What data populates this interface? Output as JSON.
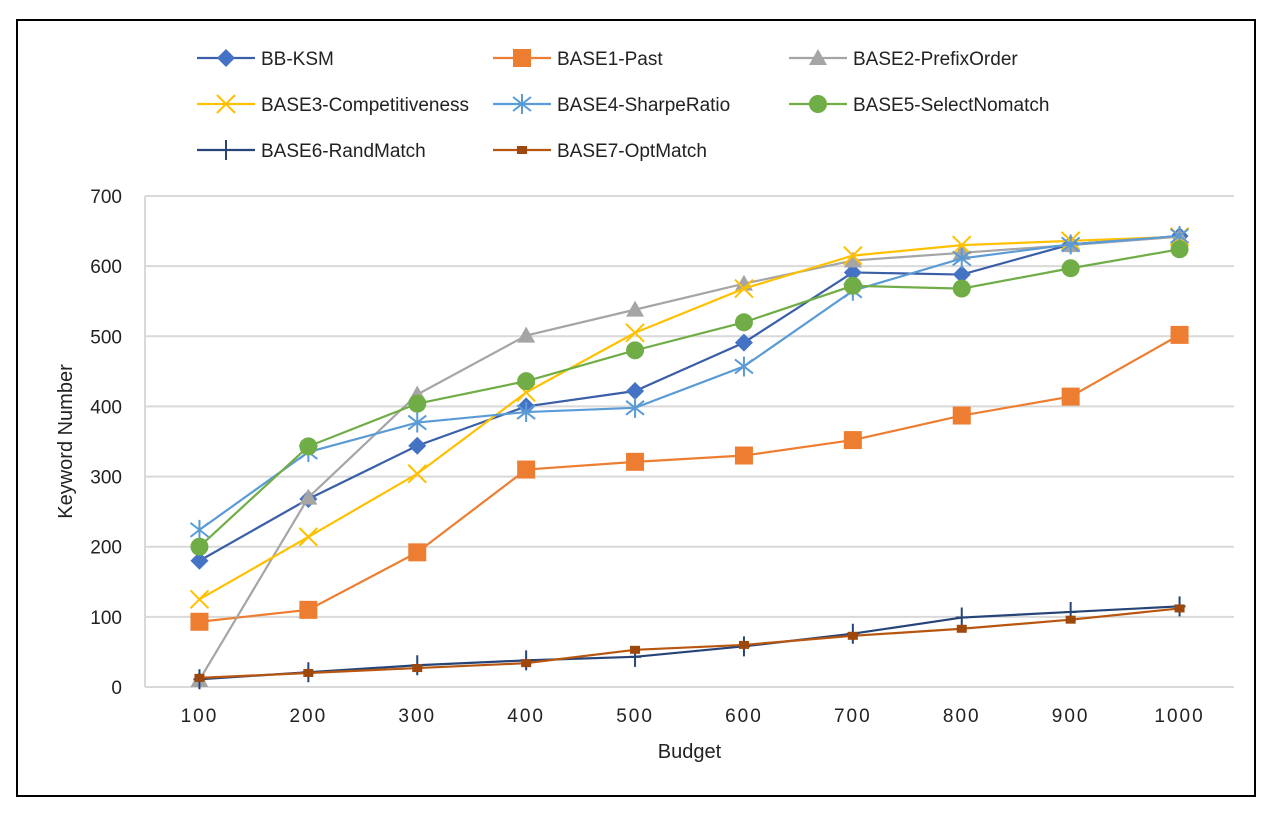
{
  "chart_data": {
    "type": "line",
    "title": "",
    "xlabel": "Budget",
    "ylabel": "Keyword Number",
    "categories": [
      "100",
      "200",
      "300",
      "400",
      "500",
      "600",
      "700",
      "800",
      "900",
      "1000"
    ],
    "ylim": [
      0,
      700
    ],
    "yticks": [
      "0",
      "100",
      "200",
      "300",
      "400",
      "500",
      "600",
      "700"
    ],
    "grid": true,
    "legend_position": "top",
    "series": [
      {
        "name": "BB-KSM",
        "color": "#4472C4",
        "line_color": "#3A5FA8",
        "marker": "diamond",
        "values": [
          180,
          268,
          344,
          400,
          422,
          491,
          591,
          588,
          631,
          643
        ]
      },
      {
        "name": "BASE1-Past",
        "color": "#ED7D31",
        "line_color": "#ED7D31",
        "marker": "square",
        "values": [
          93,
          110,
          192,
          310,
          321,
          330,
          352,
          387,
          414,
          502
        ]
      },
      {
        "name": "BASE2-PrefixOrder",
        "color": "#A5A5A5",
        "line_color": "#A5A5A5",
        "marker": "triangle",
        "values": [
          10,
          270,
          417,
          501,
          538,
          575,
          608,
          619,
          630,
          642
        ]
      },
      {
        "name": "BASE3-Competitiveness",
        "color": "#FFC000",
        "line_color": "#FFC000",
        "marker": "x",
        "values": [
          125,
          214,
          304,
          420,
          505,
          568,
          615,
          630,
          636,
          642
        ]
      },
      {
        "name": "BASE4-SharpeRatio",
        "color": "#5B9BD5",
        "line_color": "#5B9BD5",
        "marker": "star",
        "values": [
          224,
          335,
          377,
          392,
          398,
          457,
          565,
          611,
          631,
          643
        ]
      },
      {
        "name": "BASE5-SelectNomatch",
        "color": "#70AD47",
        "line_color": "#70AD47",
        "marker": "circle",
        "values": [
          200,
          343,
          404,
          436,
          480,
          520,
          572,
          568,
          597,
          624
        ]
      },
      {
        "name": "BASE6-RandMatch",
        "color": "#264478",
        "line_color": "#264478",
        "marker": "plus",
        "values": [
          11,
          21,
          31,
          38,
          43,
          58,
          76,
          99,
          107,
          115
        ]
      },
      {
        "name": "BASE7-OptMatch",
        "color": "#9E480E",
        "line_color": "#B8560F",
        "marker": "small-square",
        "values": [
          13,
          20,
          27,
          34,
          53,
          60,
          73,
          83,
          96,
          112
        ]
      }
    ]
  }
}
